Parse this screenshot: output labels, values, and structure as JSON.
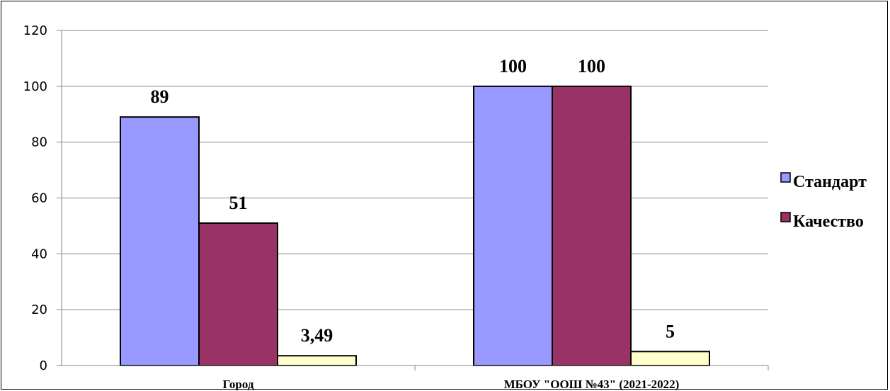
{
  "chart_data": {
    "type": "bar",
    "title": "",
    "xlabel": "",
    "ylabel": "",
    "ylim": [
      0,
      120
    ],
    "yticks": [
      0,
      20,
      40,
      60,
      80,
      100,
      120
    ],
    "grid": true,
    "legend_position": "right",
    "categories": [
      "Город",
      "МБОУ \"ООШ №43\" (2021-2022)"
    ],
    "series": [
      {
        "name": "Стандарт",
        "color": "#9999FF",
        "values": [
          89,
          100
        ],
        "labels": [
          "89",
          "100"
        ]
      },
      {
        "name": "Качество",
        "color": "#993366",
        "values": [
          51,
          100
        ],
        "labels": [
          "51",
          "100"
        ]
      },
      {
        "name": "",
        "color": "#FFFFCC",
        "values": [
          3.49,
          5
        ],
        "labels": [
          "3,49",
          "5"
        ]
      }
    ]
  }
}
